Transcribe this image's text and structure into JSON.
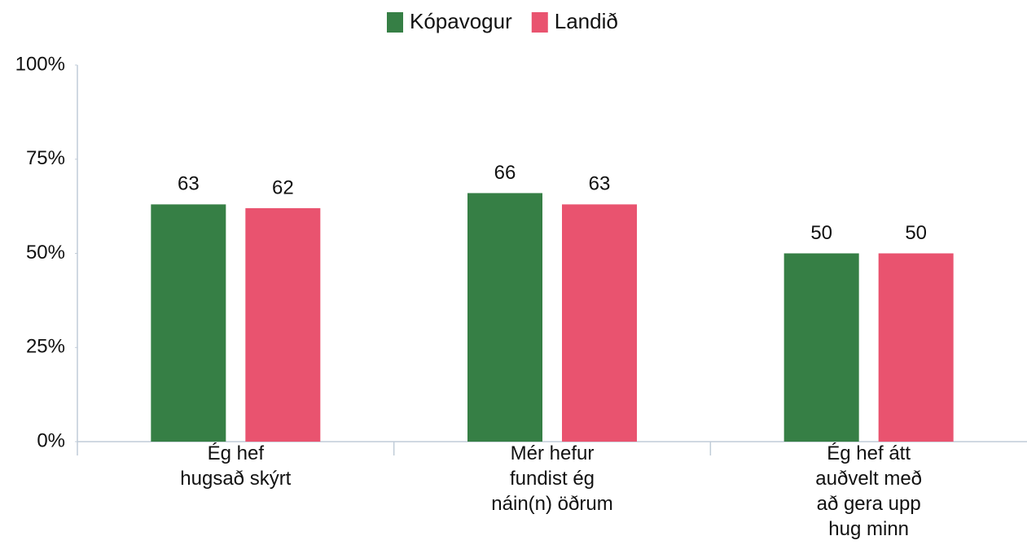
{
  "chart_data": {
    "type": "bar",
    "categories": [
      "Ég hef\nhugsað skýrt",
      "Mér hefur\nfundist ég\nnáin(n) öðrum",
      "Ég hef átt\nauðvelt með\nað gera upp\nhug minn"
    ],
    "series": [
      {
        "name": "Kópavogur",
        "color": "#367f45",
        "values": [
          63,
          66,
          50
        ]
      },
      {
        "name": "Landið",
        "color": "#e9536f",
        "values": [
          62,
          63,
          50
        ]
      }
    ],
    "ylim": [
      0,
      100
    ],
    "yticks": [
      {
        "value": 0,
        "label": "0%"
      },
      {
        "value": 25,
        "label": "25%"
      },
      {
        "value": 50,
        "label": "50%"
      },
      {
        "value": 75,
        "label": "75%"
      },
      {
        "value": 100,
        "label": "100%"
      }
    ],
    "legend": "top"
  }
}
